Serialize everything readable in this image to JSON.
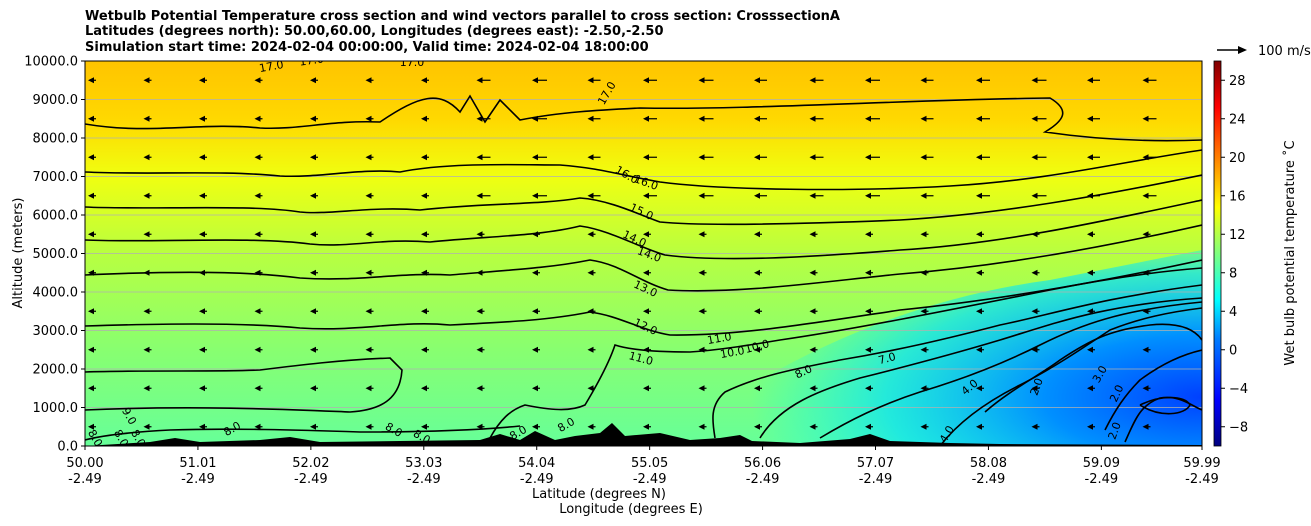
{
  "chart_data": {
    "type": "heatmap",
    "title_lines": [
      "Wetbulb Potential Temperature cross section and wind vectors parallel to cross section: CrosssectionA",
      "Latitudes (degrees north): 50.00,60.00, Longitudes (degrees east): -2.50,-2.50",
      "Simulation start time: 2024-02-04 00:00:00, Valid time: 2024-02-04 18:00:00"
    ],
    "ylabel": "Altitude (meters)",
    "xlabel": "Latitude (degrees N)",
    "xlabel2": "Longitude (degrees E)",
    "ylim": [
      0,
      10000
    ],
    "xlim": [
      50.0,
      59.99
    ],
    "y_ticks": [
      "0.0",
      "1000.0",
      "2000.0",
      "3000.0",
      "4000.0",
      "5000.0",
      "6000.0",
      "7000.0",
      "8000.0",
      "9000.0",
      "10000.0"
    ],
    "x_ticks": [
      {
        "lat": "50.00",
        "lon": "-2.49"
      },
      {
        "lat": "51.01",
        "lon": "-2.49"
      },
      {
        "lat": "52.02",
        "lon": "-2.49"
      },
      {
        "lat": "53.03",
        "lon": "-2.49"
      },
      {
        "lat": "54.04",
        "lon": "-2.49"
      },
      {
        "lat": "55.05",
        "lon": "-2.49"
      },
      {
        "lat": "56.06",
        "lon": "-2.49"
      },
      {
        "lat": "57.07",
        "lon": "-2.49"
      },
      {
        "lat": "58.08",
        "lon": "-2.49"
      },
      {
        "lat": "59.09",
        "lon": "-2.49"
      },
      {
        "lat": "59.99",
        "lon": "-2.49"
      }
    ],
    "grid": "horizontal",
    "colorbar": {
      "label": "Wet bulb potential temperature ˚C",
      "range": [
        -10,
        30
      ],
      "ticks": [
        "28",
        "24",
        "20",
        "16",
        "12",
        "8",
        "4",
        "0",
        "−4",
        "−8"
      ],
      "colors": [
        "#00007f",
        "#0000ff",
        "#007fff",
        "#00ffff",
        "#7fff7f",
        "#ffff00",
        "#ff7f00",
        "#ff0000",
        "#7f0000"
      ]
    },
    "quiver_key": "100 m/s",
    "contour_labels": [
      "17.0",
      "17.0",
      "17.0",
      "17.0",
      "16.0",
      "16.0",
      "15.0",
      "14.0",
      "14.0",
      "13.0",
      "12.0",
      "11.0",
      "11.0",
      "10.0",
      "10.0",
      "8.0",
      "7.0",
      "4.0",
      "4.0",
      "2.0",
      "3.0",
      "2.0",
      "2.0",
      "9.0",
      "8.0",
      "8.0",
      "8.0",
      "8.0",
      "8.0",
      "8.0",
      "8.0",
      "8.0"
    ]
  }
}
